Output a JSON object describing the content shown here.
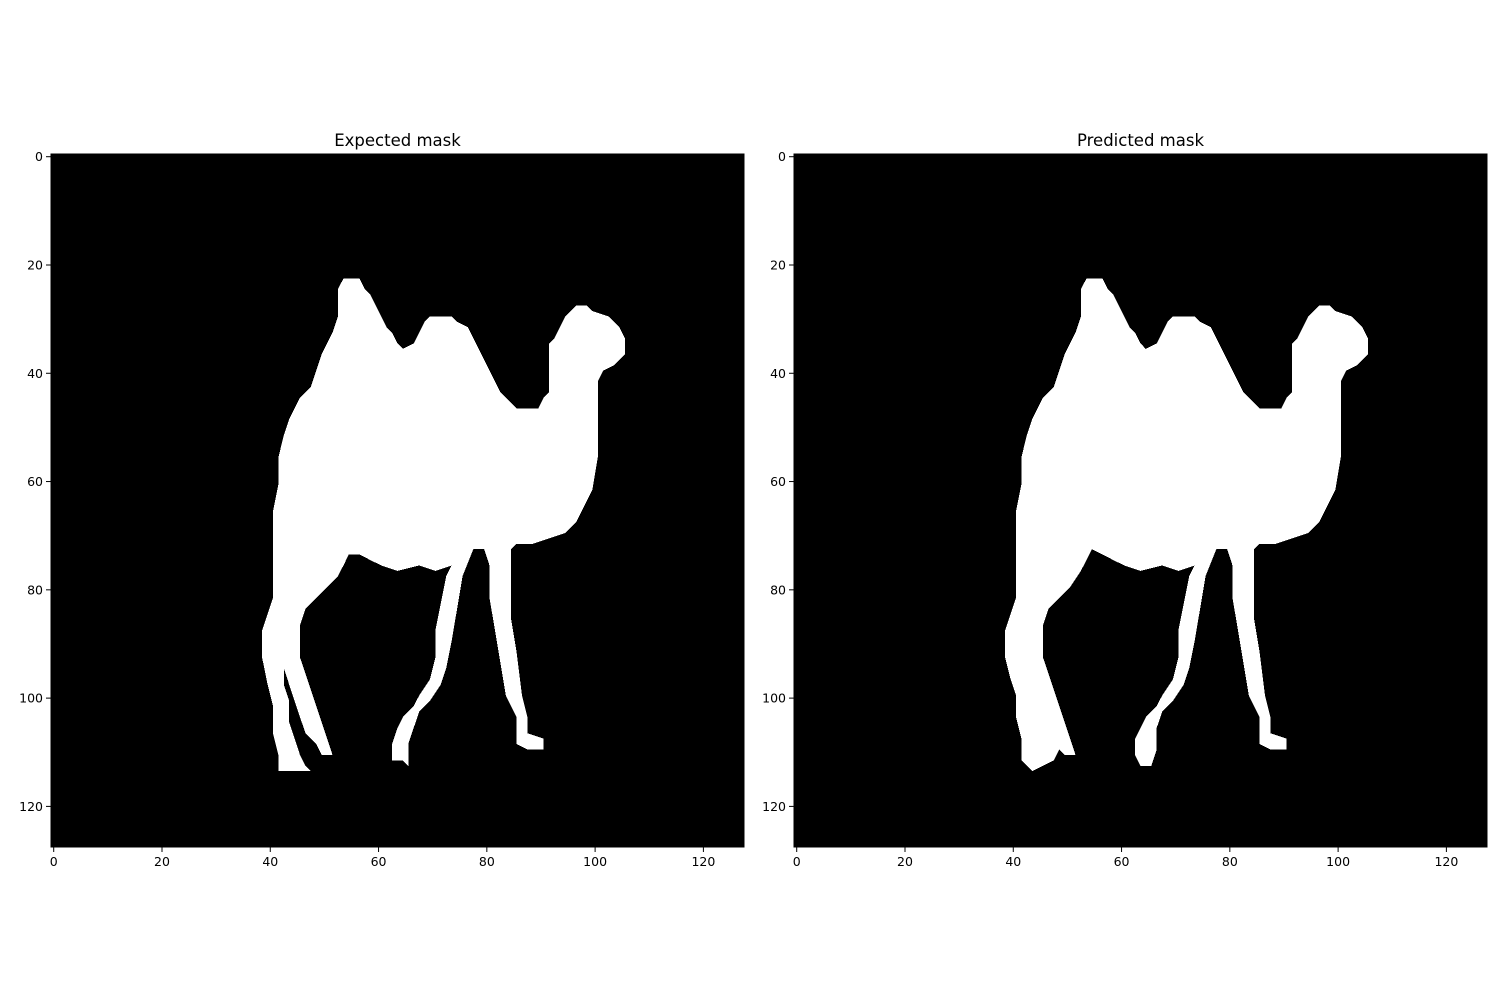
{
  "chart_data": [
    {
      "type": "heatmap",
      "title": "Expected mask",
      "xlabel": "",
      "ylabel": "",
      "xlim": [
        0,
        128
      ],
      "ylim": [
        128,
        0
      ],
      "xticks": [
        0,
        20,
        40,
        60,
        80,
        100,
        120
      ],
      "yticks": [
        0,
        20,
        40,
        60,
        80,
        100,
        120
      ],
      "colormap": {
        "0": "#000000",
        "1": "#ffffff"
      },
      "grid": false,
      "mask_polygon": [
        [
          54,
          23
        ],
        [
          57,
          23
        ],
        [
          58,
          25
        ],
        [
          59,
          26
        ],
        [
          60,
          28
        ],
        [
          61,
          30
        ],
        [
          62,
          32
        ],
        [
          63,
          33
        ],
        [
          64,
          35
        ],
        [
          65,
          36
        ],
        [
          67,
          35
        ],
        [
          68,
          33
        ],
        [
          69,
          31
        ],
        [
          70,
          30
        ],
        [
          74,
          30
        ],
        [
          75,
          31
        ],
        [
          77,
          32
        ],
        [
          78,
          34
        ],
        [
          79,
          36
        ],
        [
          80,
          38
        ],
        [
          81,
          40
        ],
        [
          82,
          42
        ],
        [
          83,
          44
        ],
        [
          84,
          45
        ],
        [
          85,
          46
        ],
        [
          86,
          47
        ],
        [
          90,
          47
        ],
        [
          91,
          45
        ],
        [
          92,
          44
        ],
        [
          92,
          38
        ],
        [
          92,
          35
        ],
        [
          93,
          34
        ],
        [
          94,
          32
        ],
        [
          95,
          30
        ],
        [
          97,
          28
        ],
        [
          99,
          28
        ],
        [
          100,
          29
        ],
        [
          103,
          30
        ],
        [
          104,
          31
        ],
        [
          105,
          32
        ],
        [
          106,
          34
        ],
        [
          106,
          37
        ],
        [
          104,
          39
        ],
        [
          102,
          40
        ],
        [
          101,
          42
        ],
        [
          101,
          46
        ],
        [
          101,
          50
        ],
        [
          101,
          56
        ],
        [
          100,
          62
        ],
        [
          99,
          64
        ],
        [
          98,
          66
        ],
        [
          97,
          68
        ],
        [
          95,
          70
        ],
        [
          92,
          71
        ],
        [
          89,
          72
        ],
        [
          86,
          72
        ],
        [
          85,
          73
        ],
        [
          85,
          80
        ],
        [
          85,
          86
        ],
        [
          86,
          92
        ],
        [
          87,
          100
        ],
        [
          88,
          104
        ],
        [
          88,
          107
        ],
        [
          91,
          108
        ],
        [
          91,
          110
        ],
        [
          88,
          110
        ],
        [
          86,
          109
        ],
        [
          86,
          104
        ],
        [
          84,
          100
        ],
        [
          83,
          94
        ],
        [
          82,
          88
        ],
        [
          81,
          82
        ],
        [
          81,
          76
        ],
        [
          80,
          73
        ],
        [
          78,
          73
        ],
        [
          76,
          78
        ],
        [
          75,
          84
        ],
        [
          74,
          90
        ],
        [
          73,
          95
        ],
        [
          72,
          98
        ],
        [
          70,
          101
        ],
        [
          68,
          103
        ],
        [
          67,
          106
        ],
        [
          66,
          109
        ],
        [
          66,
          113
        ],
        [
          65,
          112
        ],
        [
          63,
          112
        ],
        [
          63,
          109
        ],
        [
          64,
          106
        ],
        [
          65,
          104
        ],
        [
          67,
          102
        ],
        [
          68,
          100
        ],
        [
          70,
          97
        ],
        [
          71,
          93
        ],
        [
          71,
          88
        ],
        [
          72,
          83
        ],
        [
          73,
          78
        ],
        [
          74,
          76
        ],
        [
          71,
          77
        ],
        [
          68,
          76
        ],
        [
          64,
          77
        ],
        [
          61,
          76
        ],
        [
          59,
          75
        ],
        [
          57,
          74
        ],
        [
          55,
          74
        ],
        [
          54,
          76
        ],
        [
          53,
          78
        ],
        [
          51,
          80
        ],
        [
          49,
          82
        ],
        [
          47,
          84
        ],
        [
          46,
          87
        ],
        [
          46,
          93
        ],
        [
          47,
          96
        ],
        [
          48,
          99
        ],
        [
          49,
          102
        ],
        [
          50,
          105
        ],
        [
          51,
          108
        ],
        [
          52,
          111
        ],
        [
          50,
          111
        ],
        [
          49,
          109
        ],
        [
          47,
          107
        ],
        [
          46,
          104
        ],
        [
          45,
          101
        ],
        [
          44,
          98
        ],
        [
          43,
          95
        ],
        [
          43,
          98
        ],
        [
          44,
          101
        ],
        [
          44,
          105
        ],
        [
          45,
          108
        ],
        [
          46,
          111
        ],
        [
          47,
          113
        ],
        [
          48,
          114
        ],
        [
          42,
          114
        ],
        [
          42,
          111
        ],
        [
          41,
          107
        ],
        [
          41,
          102
        ],
        [
          40,
          98
        ],
        [
          39,
          93
        ],
        [
          39,
          88
        ],
        [
          40,
          85
        ],
        [
          41,
          82
        ],
        [
          41,
          78
        ],
        [
          41,
          72
        ],
        [
          41,
          66
        ],
        [
          42,
          61
        ],
        [
          42,
          56
        ],
        [
          43,
          52
        ],
        [
          44,
          49
        ],
        [
          45,
          47
        ],
        [
          46,
          45
        ],
        [
          48,
          43
        ],
        [
          49,
          40
        ],
        [
          50,
          37
        ],
        [
          51,
          35
        ],
        [
          52,
          33
        ],
        [
          53,
          30
        ],
        [
          53,
          25
        ]
      ]
    },
    {
      "type": "heatmap",
      "title": "Predicted mask",
      "xlabel": "",
      "ylabel": "",
      "xlim": [
        0,
        128
      ],
      "ylim": [
        128,
        0
      ],
      "xticks": [
        0,
        20,
        40,
        60,
        80,
        100,
        120
      ],
      "yticks": [
        0,
        20,
        40,
        60,
        80,
        100,
        120
      ],
      "colormap": {
        "0": "#000000",
        "1": "#ffffff"
      },
      "grid": false,
      "mask_polygon": [
        [
          54,
          23
        ],
        [
          57,
          23
        ],
        [
          58,
          25
        ],
        [
          59,
          26
        ],
        [
          60,
          28
        ],
        [
          61,
          30
        ],
        [
          62,
          32
        ],
        [
          63,
          33
        ],
        [
          64,
          35
        ],
        [
          65,
          36
        ],
        [
          67,
          35
        ],
        [
          68,
          33
        ],
        [
          69,
          31
        ],
        [
          70,
          30
        ],
        [
          74,
          30
        ],
        [
          75,
          31
        ],
        [
          77,
          32
        ],
        [
          78,
          34
        ],
        [
          79,
          36
        ],
        [
          80,
          38
        ],
        [
          81,
          40
        ],
        [
          82,
          42
        ],
        [
          83,
          44
        ],
        [
          84,
          45
        ],
        [
          85,
          46
        ],
        [
          86,
          47
        ],
        [
          90,
          47
        ],
        [
          91,
          45
        ],
        [
          92,
          44
        ],
        [
          92,
          38
        ],
        [
          92,
          35
        ],
        [
          93,
          34
        ],
        [
          94,
          32
        ],
        [
          95,
          30
        ],
        [
          97,
          28
        ],
        [
          99,
          28
        ],
        [
          100,
          29
        ],
        [
          103,
          30
        ],
        [
          104,
          31
        ],
        [
          105,
          32
        ],
        [
          106,
          34
        ],
        [
          106,
          37
        ],
        [
          104,
          39
        ],
        [
          102,
          40
        ],
        [
          101,
          42
        ],
        [
          101,
          46
        ],
        [
          101,
          50
        ],
        [
          101,
          56
        ],
        [
          100,
          62
        ],
        [
          99,
          64
        ],
        [
          98,
          66
        ],
        [
          97,
          68
        ],
        [
          95,
          70
        ],
        [
          92,
          71
        ],
        [
          89,
          72
        ],
        [
          86,
          72
        ],
        [
          85,
          73
        ],
        [
          85,
          80
        ],
        [
          85,
          86
        ],
        [
          86,
          92
        ],
        [
          87,
          100
        ],
        [
          88,
          104
        ],
        [
          88,
          107
        ],
        [
          91,
          108
        ],
        [
          91,
          110
        ],
        [
          88,
          110
        ],
        [
          86,
          109
        ],
        [
          86,
          104
        ],
        [
          84,
          100
        ],
        [
          83,
          94
        ],
        [
          82,
          88
        ],
        [
          81,
          82
        ],
        [
          81,
          76
        ],
        [
          80,
          73
        ],
        [
          78,
          73
        ],
        [
          76,
          78
        ],
        [
          75,
          84
        ],
        [
          74,
          90
        ],
        [
          73,
          95
        ],
        [
          72,
          98
        ],
        [
          70,
          101
        ],
        [
          68,
          103
        ],
        [
          67,
          106
        ],
        [
          67,
          110
        ],
        [
          66,
          113
        ],
        [
          64,
          113
        ],
        [
          63,
          111
        ],
        [
          63,
          108
        ],
        [
          64,
          106
        ],
        [
          65,
          104
        ],
        [
          67,
          102
        ],
        [
          68,
          100
        ],
        [
          70,
          97
        ],
        [
          71,
          93
        ],
        [
          71,
          88
        ],
        [
          72,
          83
        ],
        [
          73,
          78
        ],
        [
          74,
          76
        ],
        [
          71,
          77
        ],
        [
          68,
          76
        ],
        [
          64,
          77
        ],
        [
          61,
          76
        ],
        [
          59,
          75
        ],
        [
          57,
          74
        ],
        [
          55,
          73
        ],
        [
          54,
          75
        ],
        [
          53,
          77
        ],
        [
          51,
          80
        ],
        [
          49,
          82
        ],
        [
          47,
          84
        ],
        [
          46,
          87
        ],
        [
          46,
          93
        ],
        [
          47,
          96
        ],
        [
          48,
          99
        ],
        [
          49,
          102
        ],
        [
          50,
          105
        ],
        [
          51,
          108
        ],
        [
          52,
          111
        ],
        [
          50,
          111
        ],
        [
          49,
          110
        ],
        [
          48,
          112
        ],
        [
          46,
          113
        ],
        [
          44,
          114
        ],
        [
          43,
          113
        ],
        [
          42,
          112
        ],
        [
          42,
          108
        ],
        [
          41,
          104
        ],
        [
          41,
          100
        ],
        [
          40,
          97
        ],
        [
          39,
          93
        ],
        [
          39,
          88
        ],
        [
          40,
          85
        ],
        [
          41,
          82
        ],
        [
          41,
          78
        ],
        [
          41,
          72
        ],
        [
          41,
          66
        ],
        [
          42,
          61
        ],
        [
          42,
          56
        ],
        [
          43,
          52
        ],
        [
          44,
          49
        ],
        [
          45,
          47
        ],
        [
          46,
          45
        ],
        [
          48,
          43
        ],
        [
          49,
          40
        ],
        [
          50,
          37
        ],
        [
          51,
          35
        ],
        [
          52,
          33
        ],
        [
          53,
          30
        ],
        [
          53,
          25
        ]
      ]
    }
  ]
}
